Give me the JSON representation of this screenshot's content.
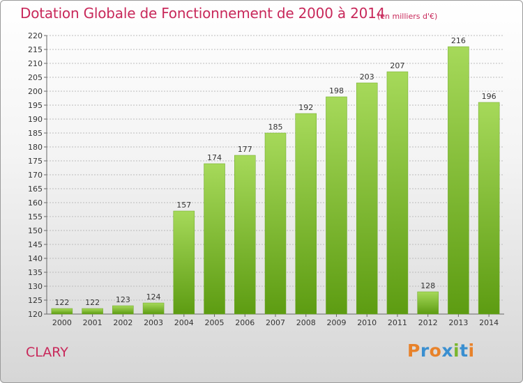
{
  "header": {
    "title": "Dotation Globale de Fonctionnement de 2000 à 2014",
    "units": "(en milliers d'€)"
  },
  "footer": {
    "commune": "CLARY",
    "brand": "Proxiti"
  },
  "colors": {
    "title": "#c8285a",
    "bar_light": "#a6d95a",
    "bar_dark": "#5d9c12",
    "grid": "#bbbbbb",
    "brand_letters": [
      "#e8822a",
      "#3a8fd0",
      "#e8822a",
      "#3a8fd0",
      "#7ab62e",
      "#3a8fd0",
      "#e8822a"
    ]
  },
  "chart_data": {
    "type": "bar",
    "title": "Dotation Globale de Fonctionnement de 2000 à 2014",
    "subtitle": "(en milliers d'€)",
    "xlabel": "",
    "ylabel": "",
    "categories": [
      "2000",
      "2001",
      "2002",
      "2003",
      "2004",
      "2005",
      "2006",
      "2007",
      "2008",
      "2009",
      "2010",
      "2011",
      "2012",
      "2013",
      "2014"
    ],
    "values": [
      122,
      122,
      123,
      124,
      157,
      174,
      177,
      185,
      192,
      198,
      203,
      207,
      128,
      216,
      196
    ],
    "ylim": [
      120,
      220
    ],
    "yticks": [
      120,
      125,
      130,
      135,
      140,
      145,
      150,
      155,
      160,
      165,
      170,
      175,
      180,
      185,
      190,
      195,
      200,
      205,
      210,
      215,
      220
    ],
    "grid": true,
    "data_labels": true
  }
}
